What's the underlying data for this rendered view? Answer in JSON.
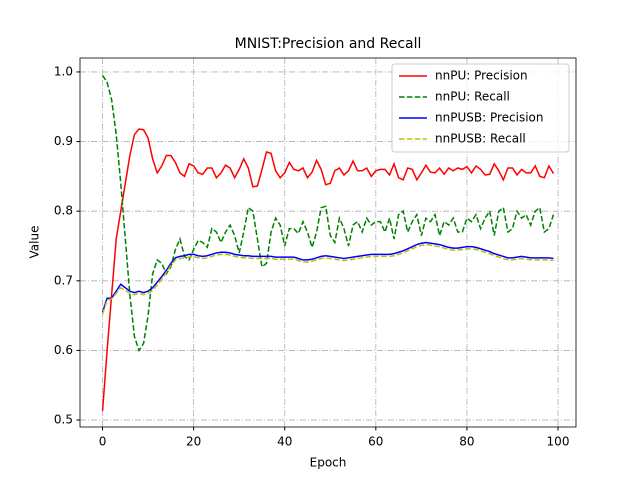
{
  "chart_data": {
    "type": "line",
    "title": "MNIST:Precision and Recall",
    "x_label": "Epoch",
    "y_label": "Value",
    "x": [
      0,
      1,
      2,
      3,
      4,
      5,
      6,
      7,
      8,
      9,
      10,
      11,
      12,
      13,
      14,
      15,
      16,
      17,
      18,
      19,
      20,
      21,
      22,
      23,
      24,
      25,
      26,
      27,
      28,
      29,
      30,
      31,
      32,
      33,
      34,
      35,
      36,
      37,
      38,
      39,
      40,
      41,
      42,
      43,
      44,
      45,
      46,
      47,
      48,
      49,
      50,
      51,
      52,
      53,
      54,
      55,
      56,
      57,
      58,
      59,
      60,
      61,
      62,
      63,
      64,
      65,
      66,
      67,
      68,
      69,
      70,
      71,
      72,
      73,
      74,
      75,
      76,
      77,
      78,
      79,
      80,
      81,
      82,
      83,
      84,
      85,
      86,
      87,
      88,
      89,
      90,
      91,
      92,
      93,
      94,
      95,
      96,
      97,
      98,
      99
    ],
    "series": [
      {
        "name": "nnPU: Precision",
        "color": "#ff0000",
        "linestyle": "solid",
        "values": [
          0.513,
          0.6,
          0.68,
          0.76,
          0.8,
          0.84,
          0.88,
          0.91,
          0.918,
          0.917,
          0.905,
          0.875,
          0.855,
          0.865,
          0.88,
          0.88,
          0.87,
          0.855,
          0.85,
          0.868,
          0.865,
          0.855,
          0.853,
          0.862,
          0.862,
          0.848,
          0.855,
          0.866,
          0.862,
          0.848,
          0.86,
          0.875,
          0.862,
          0.835,
          0.836,
          0.86,
          0.885,
          0.883,
          0.858,
          0.848,
          0.855,
          0.87,
          0.86,
          0.858,
          0.862,
          0.848,
          0.856,
          0.873,
          0.86,
          0.838,
          0.84,
          0.858,
          0.862,
          0.852,
          0.858,
          0.872,
          0.858,
          0.858,
          0.862,
          0.85,
          0.858,
          0.86,
          0.86,
          0.852,
          0.868,
          0.848,
          0.845,
          0.862,
          0.86,
          0.845,
          0.855,
          0.866,
          0.856,
          0.855,
          0.862,
          0.853,
          0.862,
          0.858,
          0.862,
          0.86,
          0.864,
          0.855,
          0.865,
          0.86,
          0.852,
          0.853,
          0.868,
          0.858,
          0.845,
          0.862,
          0.862,
          0.852,
          0.86,
          0.855,
          0.855,
          0.865,
          0.85,
          0.848,
          0.865,
          0.854
        ]
      },
      {
        "name": "nnPU: Recall",
        "color": "#008000",
        "linestyle": "dashed",
        "values": [
          0.995,
          0.985,
          0.96,
          0.91,
          0.84,
          0.76,
          0.68,
          0.62,
          0.6,
          0.61,
          0.65,
          0.71,
          0.73,
          0.725,
          0.71,
          0.72,
          0.745,
          0.76,
          0.735,
          0.73,
          0.745,
          0.758,
          0.755,
          0.748,
          0.775,
          0.77,
          0.755,
          0.77,
          0.78,
          0.765,
          0.74,
          0.77,
          0.805,
          0.8,
          0.76,
          0.72,
          0.725,
          0.77,
          0.79,
          0.78,
          0.75,
          0.775,
          0.775,
          0.768,
          0.785,
          0.77,
          0.748,
          0.77,
          0.805,
          0.807,
          0.765,
          0.755,
          0.79,
          0.775,
          0.75,
          0.78,
          0.785,
          0.77,
          0.79,
          0.78,
          0.785,
          0.785,
          0.77,
          0.79,
          0.76,
          0.795,
          0.8,
          0.77,
          0.785,
          0.795,
          0.765,
          0.79,
          0.785,
          0.795,
          0.765,
          0.785,
          0.78,
          0.79,
          0.77,
          0.77,
          0.79,
          0.785,
          0.795,
          0.775,
          0.79,
          0.8,
          0.765,
          0.8,
          0.805,
          0.77,
          0.775,
          0.8,
          0.79,
          0.795,
          0.78,
          0.8,
          0.805,
          0.77,
          0.775,
          0.795
        ]
      },
      {
        "name": "nnPUSB: Precision",
        "color": "#0000ff",
        "linestyle": "solid",
        "values": [
          0.655,
          0.675,
          0.675,
          0.685,
          0.695,
          0.69,
          0.685,
          0.683,
          0.685,
          0.683,
          0.685,
          0.69,
          0.698,
          0.706,
          0.715,
          0.725,
          0.733,
          0.735,
          0.736,
          0.738,
          0.738,
          0.736,
          0.735,
          0.736,
          0.738,
          0.74,
          0.741,
          0.741,
          0.74,
          0.738,
          0.737,
          0.736,
          0.736,
          0.735,
          0.735,
          0.735,
          0.735,
          0.735,
          0.734,
          0.734,
          0.734,
          0.734,
          0.734,
          0.732,
          0.73,
          0.73,
          0.731,
          0.733,
          0.735,
          0.736,
          0.735,
          0.734,
          0.733,
          0.732,
          0.733,
          0.734,
          0.735,
          0.736,
          0.737,
          0.738,
          0.738,
          0.738,
          0.738,
          0.738,
          0.739,
          0.741,
          0.743,
          0.746,
          0.749,
          0.752,
          0.754,
          0.755,
          0.754,
          0.753,
          0.752,
          0.75,
          0.748,
          0.747,
          0.747,
          0.748,
          0.749,
          0.749,
          0.748,
          0.746,
          0.744,
          0.742,
          0.739,
          0.737,
          0.735,
          0.733,
          0.733,
          0.734,
          0.735,
          0.734,
          0.733,
          0.733,
          0.733,
          0.733,
          0.733,
          0.732
        ]
      },
      {
        "name": "nnPUSB: Recall",
        "color": "#bfbf00",
        "linestyle": "dashed",
        "values": [
          0.652,
          0.672,
          0.674,
          0.682,
          0.69,
          0.686,
          0.682,
          0.68,
          0.682,
          0.68,
          0.682,
          0.686,
          0.694,
          0.702,
          0.712,
          0.722,
          0.73,
          0.732,
          0.733,
          0.734,
          0.735,
          0.733,
          0.732,
          0.733,
          0.735,
          0.737,
          0.738,
          0.738,
          0.737,
          0.735,
          0.734,
          0.733,
          0.733,
          0.732,
          0.732,
          0.732,
          0.732,
          0.732,
          0.731,
          0.731,
          0.731,
          0.731,
          0.731,
          0.729,
          0.727,
          0.727,
          0.728,
          0.73,
          0.732,
          0.733,
          0.732,
          0.731,
          0.73,
          0.729,
          0.73,
          0.731,
          0.732,
          0.733,
          0.734,
          0.735,
          0.735,
          0.735,
          0.735,
          0.735,
          0.736,
          0.738,
          0.74,
          0.743,
          0.746,
          0.749,
          0.751,
          0.752,
          0.751,
          0.75,
          0.749,
          0.747,
          0.745,
          0.744,
          0.744,
          0.745,
          0.746,
          0.746,
          0.745,
          0.743,
          0.741,
          0.739,
          0.736,
          0.734,
          0.732,
          0.73,
          0.73,
          0.731,
          0.732,
          0.731,
          0.73,
          0.73,
          0.73,
          0.73,
          0.73,
          0.729
        ]
      }
    ],
    "xlim": [
      -4.95,
      103.95
    ],
    "xticks": [
      0,
      20,
      40,
      60,
      80,
      100
    ],
    "ylim": [
      0.49,
      1.02
    ],
    "yticks": [
      0.5,
      0.6,
      0.7,
      0.8,
      0.9,
      {
        "value": 1,
        "label": "1.0"
      }
    ],
    "grid": true,
    "legend": "upper right"
  }
}
